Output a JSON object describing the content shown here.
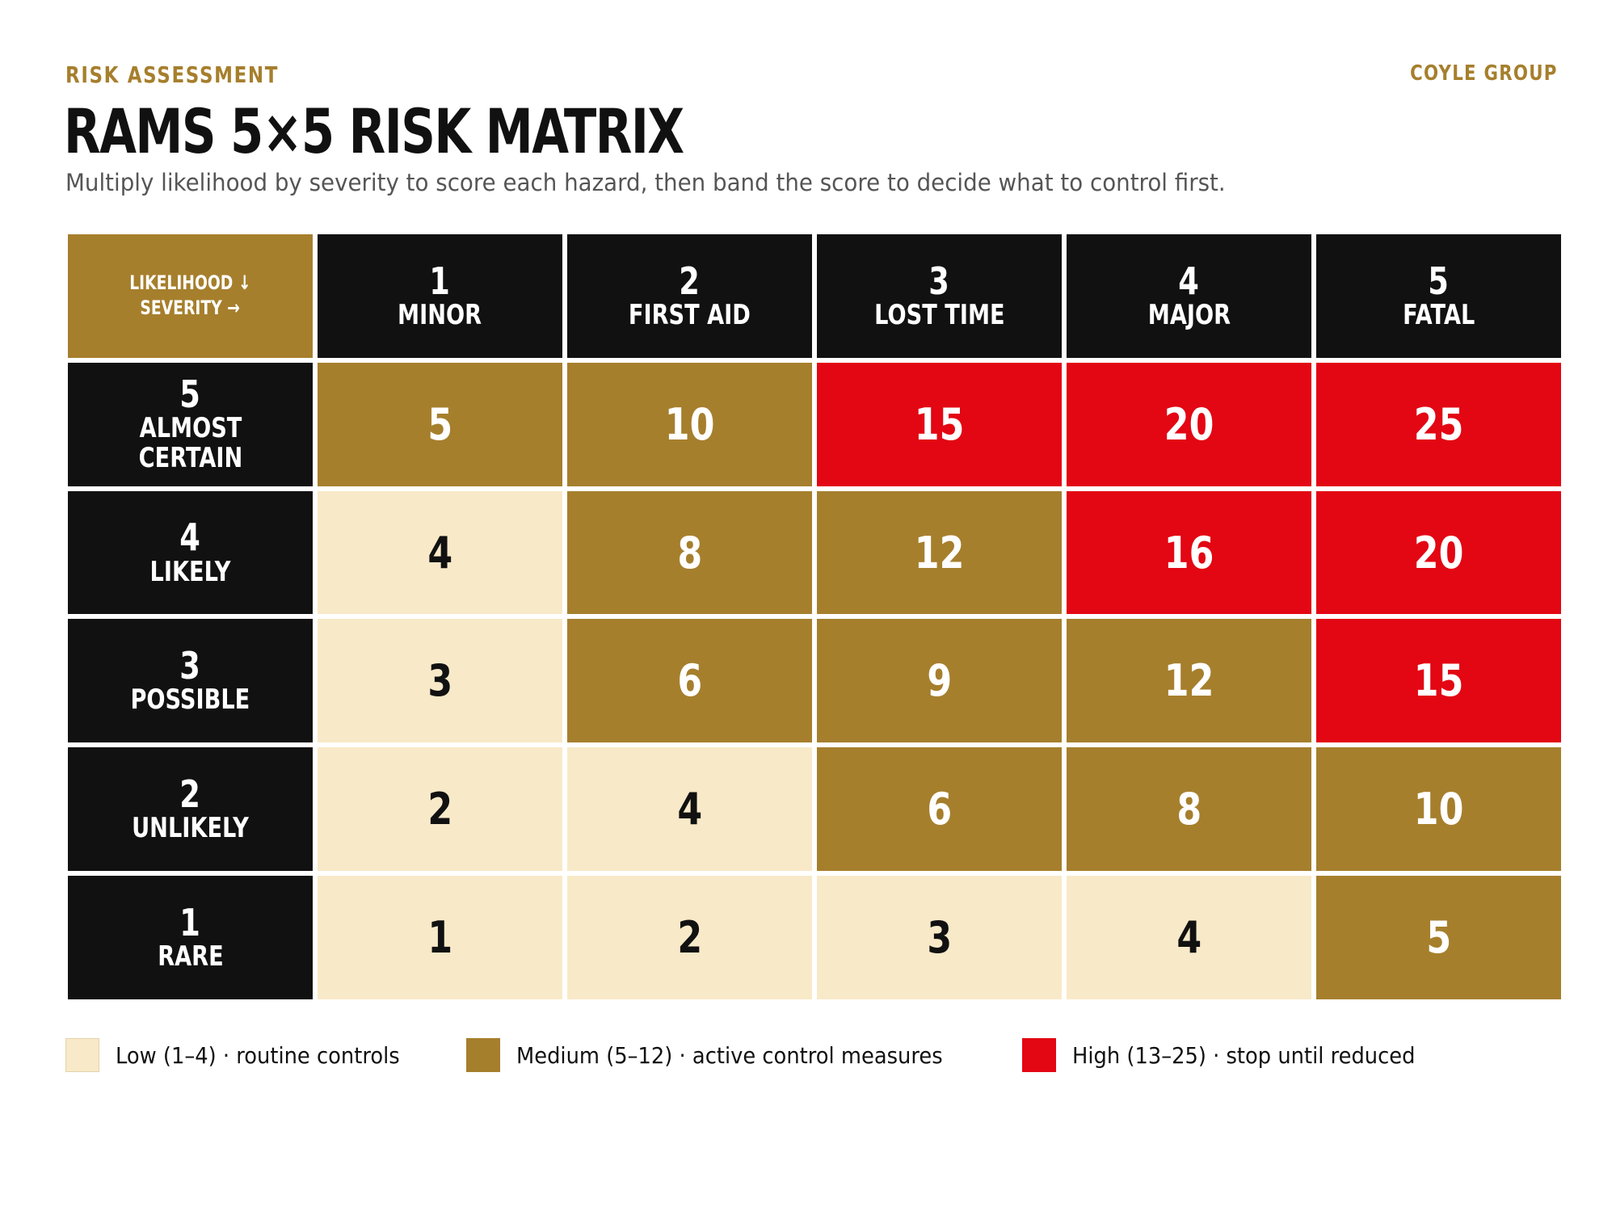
{
  "header": {
    "eyebrow": "RISK ASSESSMENT",
    "brand": "COYLE GROUP",
    "title": "RAMS 5×5 RISK MATRIX",
    "subtitle": "Multiply likelihood by severity to score each hazard, then band the score to decide what to control first."
  },
  "matrix": {
    "corner": {
      "line1": "LIKELIHOOD ↓",
      "line2": "SEVERITY →"
    },
    "severity": [
      {
        "num": "1",
        "label": "MINOR"
      },
      {
        "num": "2",
        "label": "FIRST AID"
      },
      {
        "num": "3",
        "label": "LOST TIME"
      },
      {
        "num": "4",
        "label": "MAJOR"
      },
      {
        "num": "5",
        "label": "FATAL"
      }
    ],
    "rows": [
      {
        "num": "5",
        "label": "ALMOST CERTAIN",
        "scores": [
          5,
          10,
          15,
          20,
          25
        ],
        "bands": [
          "med",
          "med",
          "high",
          "high",
          "high"
        ]
      },
      {
        "num": "4",
        "label": "LIKELY",
        "scores": [
          4,
          8,
          12,
          16,
          20
        ],
        "bands": [
          "low",
          "med",
          "med",
          "high",
          "high"
        ]
      },
      {
        "num": "3",
        "label": "POSSIBLE",
        "scores": [
          3,
          6,
          9,
          12,
          15
        ],
        "bands": [
          "low",
          "med",
          "med",
          "med",
          "high"
        ]
      },
      {
        "num": "2",
        "label": "UNLIKELY",
        "scores": [
          2,
          4,
          6,
          8,
          10
        ],
        "bands": [
          "low",
          "low",
          "med",
          "med",
          "med"
        ]
      },
      {
        "num": "1",
        "label": "RARE",
        "scores": [
          1,
          2,
          3,
          4,
          5
        ],
        "bands": [
          "low",
          "low",
          "low",
          "low",
          "med"
        ]
      }
    ]
  },
  "legend": [
    {
      "band": "low",
      "text": "Low (1–4) · routine controls",
      "color": "#f8e9c8"
    },
    {
      "band": "med",
      "text": "Medium (5–12) · active control measures",
      "color": "#a67f2d"
    },
    {
      "band": "high",
      "text": "High (13–25) · stop until reduced",
      "color": "#e30613"
    }
  ],
  "colors": {
    "low": "#f8e9c8",
    "medium": "#a67f2d",
    "high": "#e30613",
    "header": "#111111"
  }
}
